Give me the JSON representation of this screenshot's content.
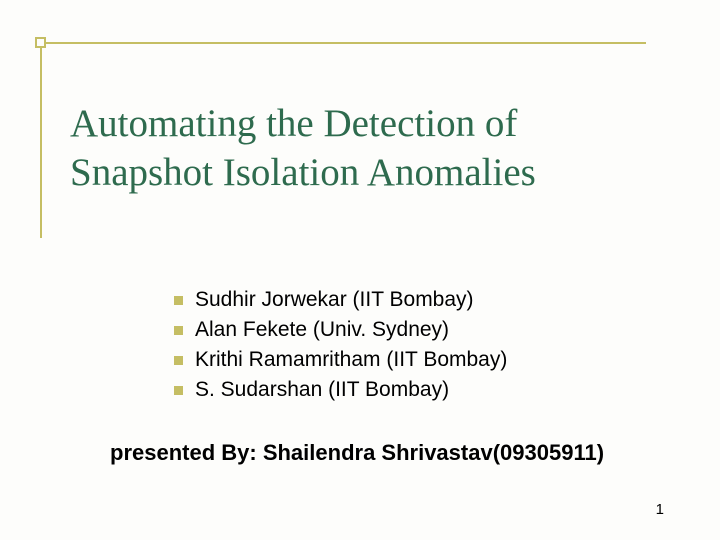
{
  "title": "Automating the Detection of Snapshot Isolation Anomalies",
  "authors": [
    "Sudhir Jorwekar (IIT Bombay)",
    "Alan Fekete (Univ. Sydney)",
    "Krithi Ramamritham (IIT Bombay)",
    "S. Sudarshan (IIT Bombay)"
  ],
  "presenter": "presented By: Shailendra Shrivastav(09305911)",
  "page_number": "1",
  "colors": {
    "accent": "#c5be63",
    "title_color": "#2e6b4e",
    "background": "#fdfdfb",
    "text": "#000000"
  },
  "typography": {
    "title_font": "Georgia, serif",
    "title_size": 39,
    "body_font": "Arial, sans-serif",
    "author_size": 21,
    "presenter_size": 22
  }
}
